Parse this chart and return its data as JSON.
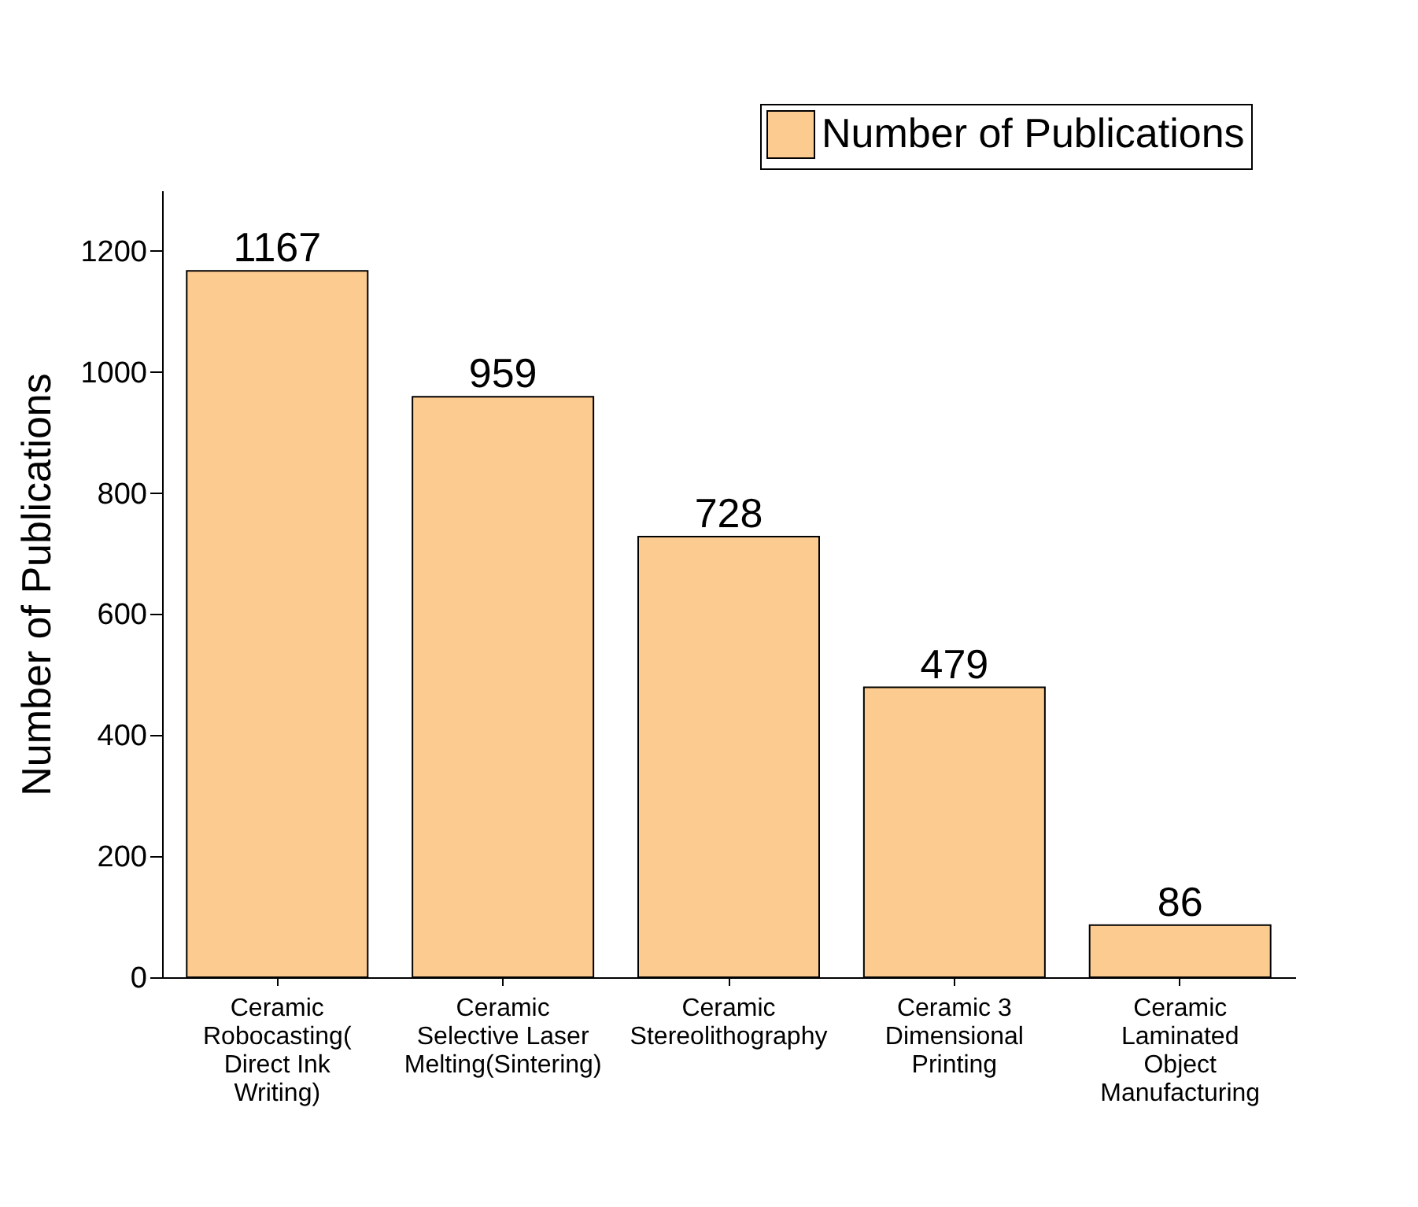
{
  "chart_data": {
    "type": "bar",
    "ylabel": "Number of Publications",
    "categories": [
      "Ceramic\nRobocasting(\nDirect Ink\nWriting)",
      "Ceramic\nSelective Laser\nMelting(Sintering)",
      "Ceramic\nStereolithography",
      "Ceramic 3\nDimensional\nPrinting",
      "Ceramic\nLaminated\nObject\nManufacturing"
    ],
    "series": [
      {
        "name": "Number of Publications",
        "color": "#fccb8f",
        "values": [
          1167,
          959,
          728,
          479,
          86
        ]
      }
    ],
    "ylim": [
      0,
      1300
    ],
    "yticks": [
      0,
      200,
      400,
      600,
      800,
      1000,
      1200
    ],
    "data_labels": true,
    "grid": false,
    "legend": "top right"
  }
}
